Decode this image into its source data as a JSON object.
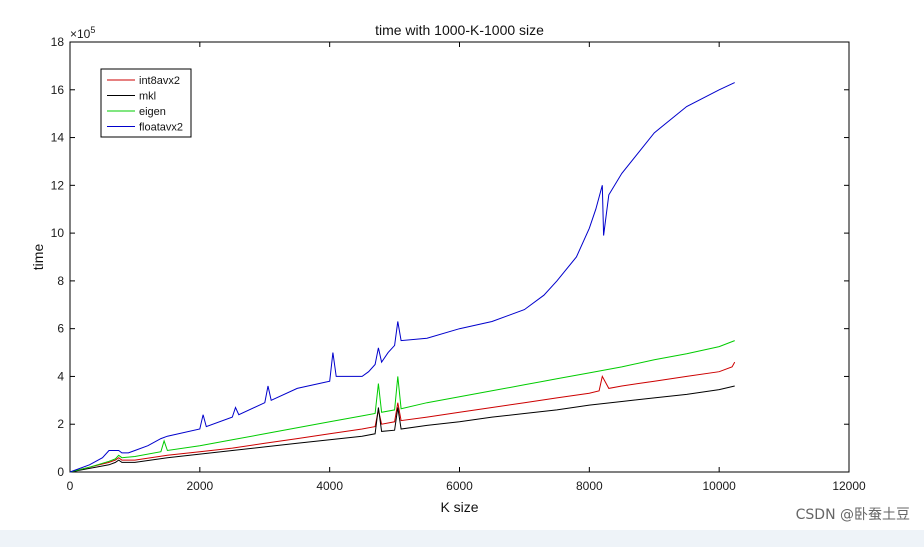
{
  "chart_data": {
    "type": "line",
    "title": "time with 1000-K-1000 size",
    "xlabel": "K size",
    "ylabel": "time",
    "y_multiplier": "×10",
    "y_multiplier_exp": "5",
    "xlim": [
      0,
      12000
    ],
    "ylim": [
      0,
      18
    ],
    "xticks": [
      0,
      2000,
      4000,
      6000,
      8000,
      10000,
      12000
    ],
    "yticks": [
      0,
      2,
      4,
      6,
      8,
      10,
      12,
      14,
      16,
      18
    ],
    "grid": false,
    "legend_position": "top-left",
    "series": [
      {
        "name": "int8avx2",
        "color": "#cc0000",
        "points": [
          [
            0,
            0
          ],
          [
            300,
            0.2
          ],
          [
            600,
            0.4
          ],
          [
            700,
            0.5
          ],
          [
            750,
            0.6
          ],
          [
            800,
            0.5
          ],
          [
            1000,
            0.5
          ],
          [
            1500,
            0.7
          ],
          [
            2000,
            0.85
          ],
          [
            2500,
            1.0
          ],
          [
            3000,
            1.2
          ],
          [
            3500,
            1.4
          ],
          [
            4000,
            1.6
          ],
          [
            4500,
            1.8
          ],
          [
            4700,
            1.9
          ],
          [
            4750,
            2.6
          ],
          [
            4800,
            2.0
          ],
          [
            5000,
            2.1
          ],
          [
            5050,
            2.9
          ],
          [
            5100,
            2.15
          ],
          [
            5500,
            2.3
          ],
          [
            6000,
            2.5
          ],
          [
            6500,
            2.7
          ],
          [
            7000,
            2.9
          ],
          [
            7500,
            3.1
          ],
          [
            8000,
            3.3
          ],
          [
            8150,
            3.4
          ],
          [
            8200,
            4.0
          ],
          [
            8300,
            3.5
          ],
          [
            8500,
            3.6
          ],
          [
            9000,
            3.8
          ],
          [
            9500,
            4.0
          ],
          [
            10000,
            4.2
          ],
          [
            10200,
            4.4
          ],
          [
            10240,
            4.6
          ]
        ]
      },
      {
        "name": "mkl",
        "color": "#000000",
        "points": [
          [
            0,
            0
          ],
          [
            300,
            0.15
          ],
          [
            600,
            0.3
          ],
          [
            700,
            0.4
          ],
          [
            750,
            0.5
          ],
          [
            800,
            0.4
          ],
          [
            1000,
            0.4
          ],
          [
            1500,
            0.6
          ],
          [
            2000,
            0.75
          ],
          [
            2500,
            0.9
          ],
          [
            3000,
            1.05
          ],
          [
            3500,
            1.2
          ],
          [
            4000,
            1.35
          ],
          [
            4500,
            1.5
          ],
          [
            4700,
            1.6
          ],
          [
            4750,
            2.7
          ],
          [
            4800,
            1.7
          ],
          [
            5000,
            1.75
          ],
          [
            5050,
            2.7
          ],
          [
            5100,
            1.8
          ],
          [
            5500,
            1.95
          ],
          [
            6000,
            2.1
          ],
          [
            6500,
            2.3
          ],
          [
            7000,
            2.45
          ],
          [
            7500,
            2.6
          ],
          [
            8000,
            2.8
          ],
          [
            8500,
            2.95
          ],
          [
            9000,
            3.1
          ],
          [
            9500,
            3.25
          ],
          [
            10000,
            3.45
          ],
          [
            10240,
            3.6
          ]
        ]
      },
      {
        "name": "eigen",
        "color": "#00cc00",
        "points": [
          [
            0,
            0
          ],
          [
            300,
            0.2
          ],
          [
            600,
            0.45
          ],
          [
            700,
            0.55
          ],
          [
            750,
            0.7
          ],
          [
            800,
            0.6
          ],
          [
            1000,
            0.65
          ],
          [
            1400,
            0.85
          ],
          [
            1450,
            1.3
          ],
          [
            1500,
            0.9
          ],
          [
            2000,
            1.1
          ],
          [
            2500,
            1.35
          ],
          [
            3000,
            1.6
          ],
          [
            3500,
            1.85
          ],
          [
            4000,
            2.1
          ],
          [
            4500,
            2.35
          ],
          [
            4700,
            2.45
          ],
          [
            4750,
            3.7
          ],
          [
            4800,
            2.5
          ],
          [
            5000,
            2.6
          ],
          [
            5050,
            4.0
          ],
          [
            5100,
            2.65
          ],
          [
            5500,
            2.9
          ],
          [
            6000,
            3.15
          ],
          [
            6500,
            3.4
          ],
          [
            7000,
            3.65
          ],
          [
            7500,
            3.9
          ],
          [
            8000,
            4.15
          ],
          [
            8500,
            4.4
          ],
          [
            9000,
            4.7
          ],
          [
            9500,
            4.95
          ],
          [
            10000,
            5.25
          ],
          [
            10240,
            5.5
          ]
        ]
      },
      {
        "name": "floatavx2",
        "color": "#0000cc",
        "points": [
          [
            0,
            0
          ],
          [
            300,
            0.3
          ],
          [
            500,
            0.6
          ],
          [
            600,
            0.9
          ],
          [
            650,
            0.9
          ],
          [
            700,
            0.9
          ],
          [
            750,
            0.9
          ],
          [
            800,
            0.8
          ],
          [
            900,
            0.8
          ],
          [
            1000,
            0.9
          ],
          [
            1200,
            1.1
          ],
          [
            1400,
            1.4
          ],
          [
            1500,
            1.5
          ],
          [
            2000,
            1.8
          ],
          [
            2050,
            2.4
          ],
          [
            2100,
            1.9
          ],
          [
            2500,
            2.3
          ],
          [
            2550,
            2.7
          ],
          [
            2600,
            2.4
          ],
          [
            3000,
            2.9
          ],
          [
            3050,
            3.6
          ],
          [
            3100,
            3.0
          ],
          [
            3500,
            3.5
          ],
          [
            4000,
            3.8
          ],
          [
            4050,
            5.0
          ],
          [
            4100,
            4.0
          ],
          [
            4500,
            4.0
          ],
          [
            4600,
            4.2
          ],
          [
            4700,
            4.5
          ],
          [
            4750,
            5.2
          ],
          [
            4800,
            4.6
          ],
          [
            4900,
            5.0
          ],
          [
            5000,
            5.3
          ],
          [
            5050,
            6.3
          ],
          [
            5100,
            5.5
          ],
          [
            5500,
            5.6
          ],
          [
            6000,
            6.0
          ],
          [
            6500,
            6.3
          ],
          [
            7000,
            6.8
          ],
          [
            7300,
            7.4
          ],
          [
            7500,
            8.0
          ],
          [
            7800,
            9.0
          ],
          [
            8000,
            10.2
          ],
          [
            8100,
            11.0
          ],
          [
            8200,
            12.0
          ],
          [
            8220,
            9.9
          ],
          [
            8300,
            11.6
          ],
          [
            8500,
            12.5
          ],
          [
            9000,
            14.2
          ],
          [
            9500,
            15.3
          ],
          [
            10000,
            16.0
          ],
          [
            10240,
            16.3
          ]
        ]
      }
    ]
  },
  "watermark": "CSDN @卧蚕土豆"
}
